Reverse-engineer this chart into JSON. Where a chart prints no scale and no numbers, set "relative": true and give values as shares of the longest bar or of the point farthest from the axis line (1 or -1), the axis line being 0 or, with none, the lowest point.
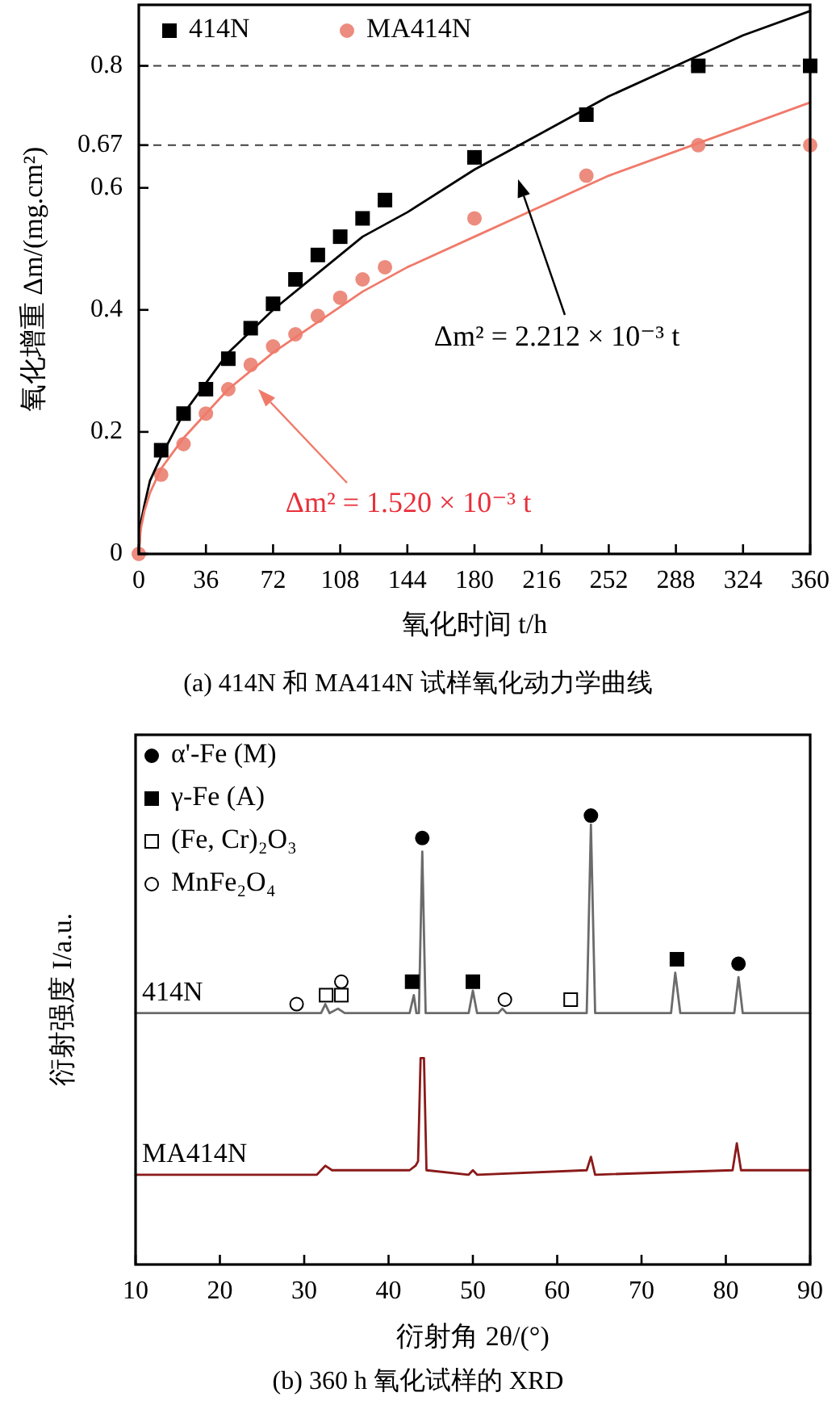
{
  "chart_data": [
    {
      "type": "scatter",
      "title": "(a) 414N 和 MA414N 试样氧化动力学曲线",
      "xlabel": "氧化时间 t/h",
      "ylabel": "氧化增重 Δm/(mg.cm²)",
      "xlim": [
        0,
        360
      ],
      "xticks": [
        0,
        36,
        72,
        108,
        144,
        180,
        216,
        252,
        288,
        324,
        360
      ],
      "ylim": [
        0,
        0.9
      ],
      "yticks": [
        0,
        0.2,
        0.4,
        0.6,
        0.67,
        0.8
      ],
      "legend": "top left",
      "grid": false,
      "ref_lines": [
        {
          "axis": "y",
          "value": 0.8,
          "line_style": "dashed",
          "color": "#404040"
        },
        {
          "axis": "y",
          "value": 0.67,
          "line_style": "dashed",
          "color": "#404040"
        }
      ],
      "annotations": [
        "Δm² = 2.212 × 10⁻³ t",
        "Δm² = 1.520 × 10⁻³ t"
      ],
      "series": [
        {
          "name": "414N",
          "marker": "square",
          "color": "#000000",
          "x": [
            12,
            24,
            36,
            48,
            60,
            72,
            84,
            96,
            108,
            120,
            132,
            180,
            240,
            300,
            360
          ],
          "values": [
            0.17,
            0.23,
            0.27,
            0.32,
            0.37,
            0.41,
            0.45,
            0.49,
            0.52,
            0.55,
            0.58,
            0.65,
            0.72,
            0.8,
            0.8
          ]
        },
        {
          "name": "MA414N",
          "marker": "circle",
          "color": "#ec8c7e",
          "x": [
            0,
            12,
            24,
            36,
            48,
            60,
            72,
            84,
            96,
            108,
            120,
            132,
            180,
            240,
            300,
            360
          ],
          "values": [
            0,
            0.13,
            0.18,
            0.23,
            0.27,
            0.31,
            0.34,
            0.36,
            0.39,
            0.42,
            0.45,
            0.47,
            0.55,
            0.62,
            0.67,
            0.67
          ]
        },
        {
          "type": "line",
          "color": "#000000",
          "x": [
            0,
            1,
            3,
            6,
            12,
            24,
            36,
            48,
            72,
            96,
            120,
            144,
            180,
            216,
            252,
            288,
            324,
            360
          ],
          "values": [
            0,
            0.05,
            0.08,
            0.12,
            0.16,
            0.23,
            0.28,
            0.33,
            0.4,
            0.46,
            0.52,
            0.56,
            0.63,
            0.69,
            0.75,
            0.8,
            0.85,
            0.89
          ]
        },
        {
          "type": "line",
          "color": "#f07a6a",
          "x": [
            0,
            1,
            3,
            6,
            12,
            24,
            36,
            48,
            72,
            96,
            120,
            144,
            180,
            216,
            252,
            288,
            324,
            360
          ],
          "values": [
            0,
            0.04,
            0.07,
            0.1,
            0.14,
            0.19,
            0.23,
            0.27,
            0.33,
            0.38,
            0.43,
            0.47,
            0.52,
            0.57,
            0.62,
            0.66,
            0.7,
            0.74
          ]
        }
      ]
    },
    {
      "type": "line",
      "title": "(b) 360 h 氧化试样的 XRD",
      "xlabel": "衍射角 2θ/(°)",
      "ylabel": "衍射强度 I/a.u.",
      "xlim": [
        10,
        90
      ],
      "xticks": [
        10,
        20,
        30,
        40,
        50,
        60,
        70,
        80,
        90
      ],
      "relative": true,
      "legend": "top left",
      "grid": false,
      "series": [
        {
          "name": "414N",
          "color": "#6b6b6b",
          "x": [
            10,
            28,
            29,
            30,
            32,
            32.5,
            33,
            34,
            34.8,
            42.5,
            43,
            43.3,
            43.6,
            44,
            44.4,
            49.5,
            50,
            50.5,
            53,
            53.5,
            54,
            63.5,
            64,
            64.5,
            73.5,
            74,
            74.6,
            81,
            81.5,
            82,
            90
          ],
          "values": [
            0.56,
            0.56,
            0.56,
            0.56,
            0.56,
            0.58,
            0.56,
            0.57,
            0.56,
            0.56,
            0.6,
            0.56,
            0.56,
            0.92,
            0.56,
            0.56,
            0.61,
            0.56,
            0.56,
            0.57,
            0.56,
            0.56,
            0.98,
            0.56,
            0.56,
            0.65,
            0.56,
            0.56,
            0.64,
            0.56,
            0.56
          ]
        },
        {
          "name": "MA414N",
          "color": "#8b1a1a",
          "x": [
            10,
            20,
            31.5,
            32.5,
            33.3,
            34,
            36,
            42.5,
            43.2,
            43.5,
            43.8,
            44.2,
            44.5,
            49.5,
            50,
            50.5,
            63.5,
            64,
            64.5,
            80.8,
            81.3,
            81.8,
            90
          ],
          "values": [
            0.2,
            0.2,
            0.2,
            0.22,
            0.21,
            0.21,
            0.21,
            0.21,
            0.22,
            0.23,
            0.46,
            0.46,
            0.21,
            0.2,
            0.21,
            0.2,
            0.21,
            0.24,
            0.2,
            0.21,
            0.27,
            0.21,
            0.21
          ]
        },
        {
          "name": "α'-Fe (M)",
          "type": "scatter",
          "marker": "circle",
          "color": "#000000",
          "x": [
            44,
            64,
            81.5
          ],
          "values": [
            0.95,
            1,
            0.67
          ]
        },
        {
          "name": "γ-Fe (A)",
          "type": "scatter",
          "marker": "square",
          "color": "#000000",
          "x": [
            42.8,
            50,
            74.2
          ],
          "values": [
            0.63,
            0.63,
            0.68
          ]
        },
        {
          "name": "(Fe, Cr)₂O₃",
          "type": "scatter",
          "marker": "square",
          "color": "#ffffff",
          "x": [
            32.6,
            34.4,
            61.6
          ],
          "values": [
            0.6,
            0.6,
            0.59
          ]
        },
        {
          "name": "MnFe₂O₄",
          "type": "scatter",
          "marker": "circle",
          "color": "#ffffff",
          "x": [
            29.1,
            34.4,
            53.8
          ],
          "values": [
            0.58,
            0.63,
            0.59
          ]
        }
      ]
    }
  ]
}
